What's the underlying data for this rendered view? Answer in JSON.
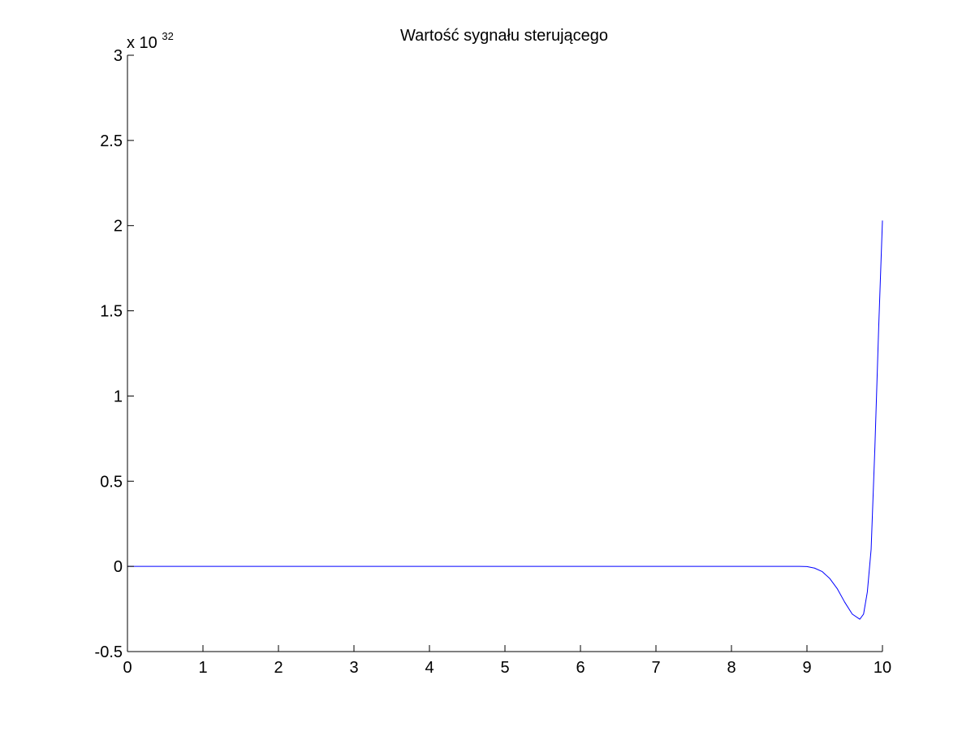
{
  "chart_data": {
    "type": "line",
    "title": "Wartość sygnału sterującego",
    "xlabel": "",
    "ylabel": "",
    "y_exponent_prefix": "x 10",
    "y_exponent": "32",
    "xlim": [
      0,
      10
    ],
    "ylim": [
      -0.5,
      3
    ],
    "x_ticks": [
      0,
      1,
      2,
      3,
      4,
      5,
      6,
      7,
      8,
      9,
      10
    ],
    "x_tick_labels": [
      "0",
      "1",
      "2",
      "3",
      "4",
      "5",
      "6",
      "7",
      "8",
      "9",
      "10"
    ],
    "y_ticks": [
      -0.5,
      0,
      0.5,
      1,
      1.5,
      2,
      2.5,
      3
    ],
    "y_tick_labels": [
      "-0.5",
      "0",
      "0.5",
      "1",
      "1.5",
      "2",
      "2.5",
      "3"
    ],
    "grid": false,
    "series": [
      {
        "color": "#0000ff",
        "x": [
          0,
          1,
          2,
          3,
          4,
          5,
          6,
          7,
          8,
          8.9,
          9.0,
          9.1,
          9.2,
          9.3,
          9.4,
          9.5,
          9.6,
          9.7,
          9.75,
          9.8,
          9.85,
          9.9,
          9.95,
          10.0
        ],
        "y": [
          0,
          0,
          0,
          0,
          0,
          0,
          0,
          0,
          0,
          0,
          -0.001,
          -0.01,
          -0.03,
          -0.07,
          -0.13,
          -0.21,
          -0.28,
          -0.31,
          -0.28,
          -0.15,
          0.1,
          0.7,
          1.4,
          2.03
        ]
      }
    ]
  }
}
